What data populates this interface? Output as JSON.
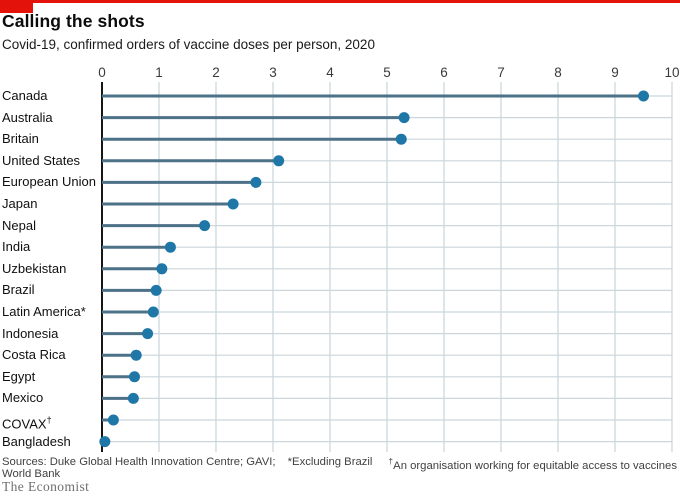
{
  "brand": {
    "red": "#e3120b"
  },
  "header": {
    "title": "Calling the shots",
    "subtitle": "Covid-19, confirmed orders of vaccine doses per person, 2020"
  },
  "chart_data": {
    "type": "bar",
    "variant": "horizontal-lollipop",
    "title": "Calling the shots",
    "subtitle": "Covid-19, confirmed orders of vaccine doses per person, 2020",
    "categories": [
      "Canada",
      "Australia",
      "Britain",
      "United States",
      "European Union",
      "Japan",
      "Nepal",
      "India",
      "Uzbekistan",
      "Brazil",
      "Latin America*",
      "Indonesia",
      "Costa Rica",
      "Egypt",
      "Mexico",
      "COVAX†",
      "Bangladesh"
    ],
    "values": [
      9.5,
      5.3,
      5.25,
      3.1,
      2.7,
      2.3,
      1.8,
      1.2,
      1.05,
      0.95,
      0.9,
      0.8,
      0.6,
      0.57,
      0.55,
      0.2,
      0.05
    ],
    "xlabel": "",
    "ylabel": "",
    "xlim": [
      0,
      10
    ],
    "xticks": [
      0,
      1,
      2,
      3,
      4,
      5,
      6,
      7,
      8,
      9,
      10
    ],
    "grid": true,
    "legend": false,
    "colors": {
      "dot": "#1f77a8",
      "stem": "#4d7187",
      "row_line": "#ccd6dc",
      "grid_line": "#c9d4da",
      "axis_line": "#161616"
    }
  },
  "footer": {
    "sources": "Sources: Duke Global Health Innovation Centre; GAVI; World Bank",
    "note_star": "*Excluding Brazil",
    "note_dagger_symbol": "†",
    "note_dagger_text": "An organisation working for equitable access to vaccines",
    "signature": "The Economist"
  }
}
